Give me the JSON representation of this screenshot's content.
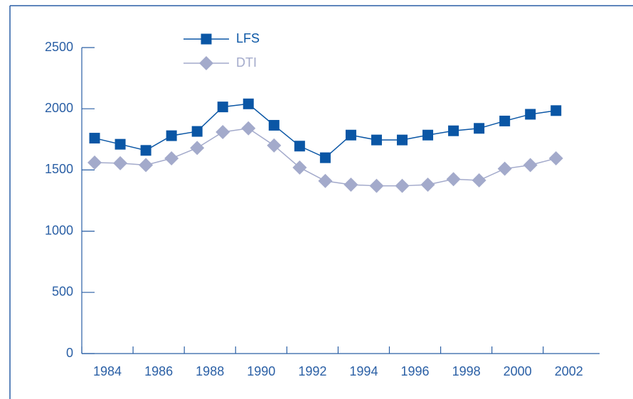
{
  "chart_data": {
    "type": "line",
    "x": [
      1983.5,
      1984.5,
      1985.5,
      1986.5,
      1987.5,
      1988.5,
      1989.5,
      1990.5,
      1991.5,
      1992.5,
      1993.5,
      1994.5,
      1995.5,
      1996.5,
      1997.5,
      1998.5,
      1999.5,
      2000.5,
      2001.5
    ],
    "series": [
      {
        "name": "LFS",
        "color": "#0a56a5",
        "marker": "square",
        "values": [
          1760,
          1710,
          1660,
          1780,
          1815,
          2015,
          2040,
          1865,
          1695,
          1600,
          1785,
          1745,
          1745,
          1785,
          1820,
          1840,
          1900,
          1955,
          1985
        ]
      },
      {
        "name": "DTI",
        "color": "#a3aacb",
        "marker": "diamond",
        "values": [
          1560,
          1555,
          1540,
          1595,
          1680,
          1810,
          1840,
          1700,
          1520,
          1410,
          1380,
          1370,
          1370,
          1380,
          1425,
          1415,
          1510,
          1540,
          1595
        ]
      }
    ],
    "xlim": [
      1983,
      2003.2
    ],
    "xticks": [
      1984,
      1986,
      1988,
      1990,
      1992,
      1994,
      1996,
      1998,
      2000,
      2002
    ],
    "ylim": [
      0,
      2500
    ],
    "yticks": [
      0,
      500,
      1000,
      1500,
      2000,
      2500
    ],
    "grid": false,
    "legend": "top-left"
  }
}
